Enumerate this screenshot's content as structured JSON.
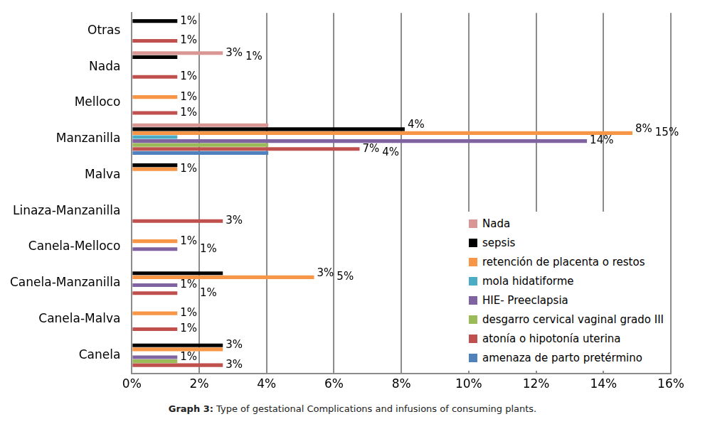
{
  "chart_data": {
    "type": "bar",
    "orientation": "horizontal",
    "title": "Graph 3: Type of gestational Complications and infusions of consuming plants.",
    "categories": [
      "Otras",
      "Nada",
      "Melloco",
      "Manzanilla",
      "Malva",
      "Linaza-Manzanilla",
      "Canela-Melloco",
      "Canela-Manzanilla",
      "Canela-Malva",
      "Canela"
    ],
    "series": [
      {
        "name": "Nada",
        "color": "#d99694",
        "values": [
          null,
          2.7,
          null,
          4.05,
          null,
          null,
          null,
          null,
          null,
          null
        ],
        "value_labels": [
          null,
          "3%",
          null,
          "4%",
          null,
          null,
          null,
          null,
          null,
          null
        ]
      },
      {
        "name": "sepsis",
        "color": "#000000",
        "values": [
          1.35,
          1.35,
          null,
          8.1,
          1.35,
          null,
          null,
          2.7,
          null,
          2.7
        ],
        "value_labels": [
          "1%",
          "1%",
          null,
          "8%",
          null,
          null,
          null,
          "3%",
          null,
          "3%"
        ]
      },
      {
        "name": "retención de placenta o restos",
        "color": "#f79646",
        "values": [
          null,
          null,
          1.35,
          14.86,
          1.35,
          null,
          1.35,
          5.41,
          1.35,
          2.7
        ],
        "value_labels": [
          null,
          null,
          "1%",
          "15%",
          "1%",
          null,
          "1%",
          "5%",
          "1%",
          null
        ]
      },
      {
        "name": "mola hidatiforme",
        "color": "#4bacc6",
        "values": [
          null,
          null,
          null,
          1.35,
          null,
          null,
          null,
          null,
          null,
          null
        ],
        "value_labels": [
          null,
          null,
          null,
          null,
          null,
          null,
          null,
          null,
          null,
          null
        ]
      },
      {
        "name": "HIE- Preeclapsia",
        "color": "#8064a2",
        "values": [
          null,
          null,
          null,
          13.51,
          null,
          null,
          1.35,
          1.35,
          null,
          1.35
        ],
        "value_labels": [
          null,
          null,
          null,
          "14%",
          null,
          null,
          "1%",
          "1%",
          null,
          "1%"
        ]
      },
      {
        "name": "desgarro cervical vaginal grado III",
        "color": "#9bbb59",
        "values": [
          null,
          null,
          null,
          4.05,
          null,
          null,
          null,
          null,
          null,
          1.35
        ],
        "value_labels": [
          null,
          null,
          null,
          null,
          null,
          null,
          null,
          null,
          null,
          null
        ]
      },
      {
        "name": "atonía o hipotonía uterina",
        "color": "#c0504d",
        "values": [
          1.35,
          1.35,
          1.35,
          6.76,
          null,
          2.7,
          null,
          1.35,
          1.35,
          2.7
        ],
        "value_labels": [
          "1%",
          "1%",
          "1%",
          "7%",
          null,
          "3%",
          null,
          "1%",
          "1%",
          "3%"
        ]
      },
      {
        "name": "amenaza de parto pretérmino",
        "color": "#4f81bd",
        "values": [
          null,
          null,
          null,
          4.05,
          null,
          null,
          null,
          null,
          null,
          null
        ],
        "value_labels": [
          null,
          null,
          null,
          "4%",
          null,
          null,
          null,
          null,
          null,
          null
        ]
      }
    ],
    "xlim": [
      0,
      16
    ],
    "xticks": [
      {
        "value": 0,
        "label": "0%"
      },
      {
        "value": 2,
        "label": "2%"
      },
      {
        "value": 4,
        "label": "4%"
      },
      {
        "value": 6,
        "label": "6%"
      },
      {
        "value": 8,
        "label": "8%"
      },
      {
        "value": 10,
        "label": "10%"
      },
      {
        "value": 12,
        "label": "12%"
      },
      {
        "value": 14,
        "label": "14%"
      },
      {
        "value": 16,
        "label": "16%"
      }
    ],
    "grid": true,
    "legend": "lower right",
    "data_labels": true
  }
}
